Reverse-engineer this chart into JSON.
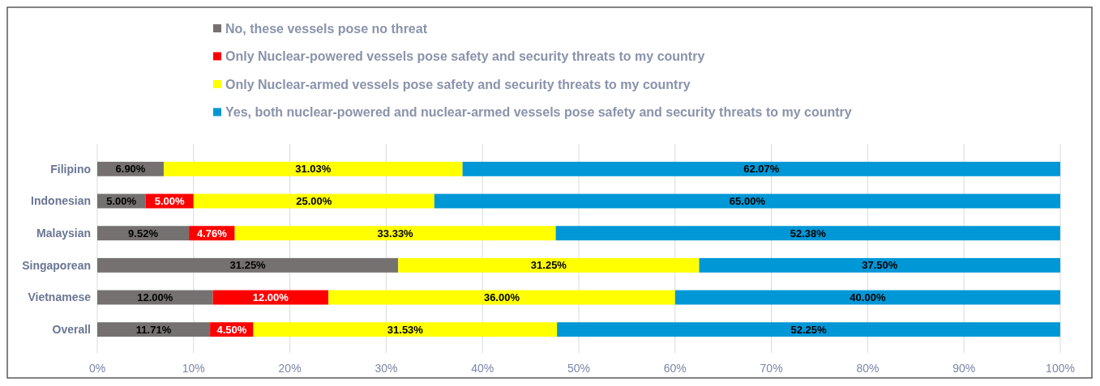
{
  "chart_data": {
    "type": "bar",
    "orientation": "horizontal",
    "stacked": true,
    "categories": [
      "Filipino",
      "Indonesian",
      "Malaysian",
      "Singaporean",
      "Vietnamese",
      "Overall"
    ],
    "series": [
      {
        "name": "No, these vessels pose no threat",
        "color": "#767171",
        "values": [
          6.9,
          5,
          9.52,
          31.25,
          12,
          11.71
        ],
        "value_labels": [
          "6.90%",
          "5.00%",
          "9.52%",
          "31.25%",
          "12.00%",
          "11.71%"
        ]
      },
      {
        "name": "Only Nuclear-powered vessels pose safety and security threats to my country",
        "color": "#ff0000",
        "values": [
          null,
          5,
          4.76,
          null,
          12,
          4.5
        ],
        "value_labels": [
          null,
          "5.00%",
          "4.76%",
          null,
          "12.00%",
          "4.50%"
        ]
      },
      {
        "name": "Only Nuclear-armed vessels pose safety and security threats to my country",
        "color": "#ffff00",
        "values": [
          31.03,
          25,
          33.33,
          31.25,
          36,
          31.53
        ],
        "value_labels": [
          "31.03%",
          "25.00%",
          "33.33%",
          "31.25%",
          "36.00%",
          "31.53%"
        ]
      },
      {
        "name": "Yes, both nuclear-powered and nuclear-armed vessels pose safety and security threats to my country",
        "color": "#0097d6",
        "values": [
          62.07,
          65,
          52.38,
          37.5,
          40,
          52.25
        ],
        "value_labels": [
          "62.07%",
          "65.00%",
          "52.38%",
          "37.50%",
          "40.00%",
          "52.25%"
        ]
      }
    ],
    "xlim": [
      0,
      100
    ],
    "xticks": [
      {
        "value": 0,
        "label": "0%"
      },
      {
        "value": 10,
        "label": "10%"
      },
      {
        "value": 20,
        "label": "20%"
      },
      {
        "value": 30,
        "label": "30%"
      },
      {
        "value": 40,
        "label": "40%"
      },
      {
        "value": 50,
        "label": "50%"
      },
      {
        "value": 60,
        "label": "60%"
      },
      {
        "value": 70,
        "label": "70%"
      },
      {
        "value": 80,
        "label": "80%"
      },
      {
        "value": 90,
        "label": "90%"
      },
      {
        "value": 100,
        "label": "100%"
      }
    ],
    "grid": "x",
    "legend": "top"
  }
}
